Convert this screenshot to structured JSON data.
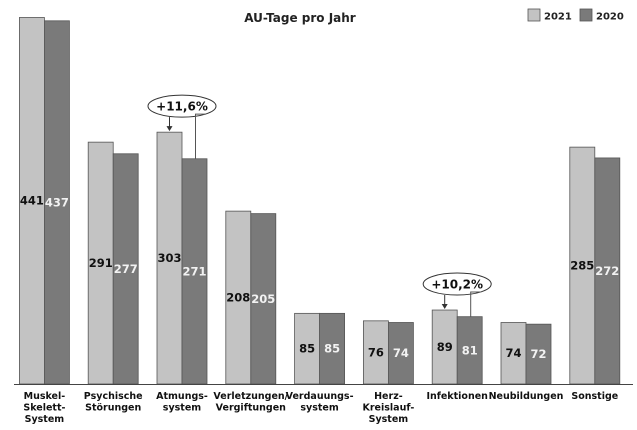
{
  "chart_data": {
    "type": "bar",
    "title": "AU-Tage pro Jahr",
    "ylim": [
      0,
      450
    ],
    "grid": false,
    "legend_position": "top-right",
    "categories": [
      [
        "Muskel-",
        "Skelett-",
        "System"
      ],
      [
        "Psychische",
        "Störungen"
      ],
      [
        "Atmungs-",
        "system"
      ],
      [
        "Verletzungen/",
        "Vergiftungen"
      ],
      [
        "Verdauungs-",
        "system"
      ],
      [
        "Herz-",
        "Kreislauf-",
        "System"
      ],
      [
        "Infektionen"
      ],
      [
        "Neubildungen"
      ],
      [
        "Sonstige"
      ]
    ],
    "series": [
      {
        "name": "2021",
        "color": "#c3c3c3",
        "values": [
          441,
          291,
          303,
          208,
          85,
          76,
          89,
          74,
          285
        ]
      },
      {
        "name": "2020",
        "color": "#7a7a7a",
        "values": [
          437,
          277,
          271,
          205,
          85,
          74,
          81,
          72,
          272
        ]
      }
    ],
    "annotations": [
      {
        "category_index": 2,
        "text": "+11,6%"
      },
      {
        "category_index": 6,
        "text": "+10,2%"
      }
    ]
  }
}
